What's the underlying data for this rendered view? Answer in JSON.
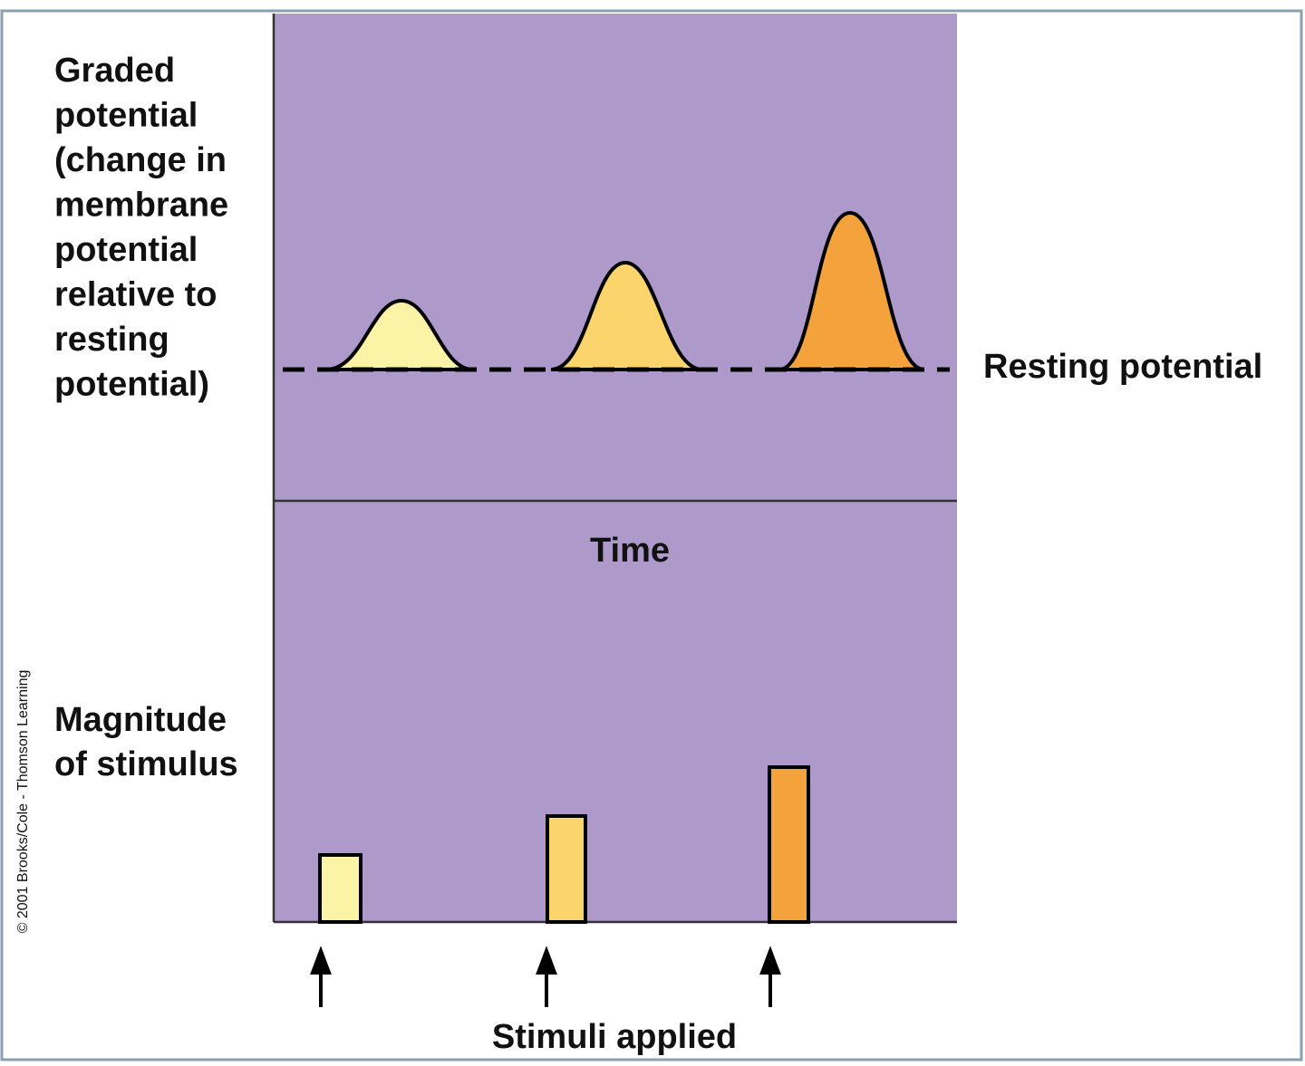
{
  "graph_label": {
    "lines": [
      "Graded",
      "potential",
      "(change in",
      "membrane",
      "potential",
      "relative to",
      "resting",
      "potential)"
    ]
  },
  "resting_label": "Resting potential",
  "time_label": "Time",
  "stimulus_label": {
    "lines": [
      "Magnitude",
      "of stimulus"
    ]
  },
  "stimuli_applied_label": "Stimuli applied",
  "copyright": "© 2001 Brooks/Cole - Thomson Learning"
}
